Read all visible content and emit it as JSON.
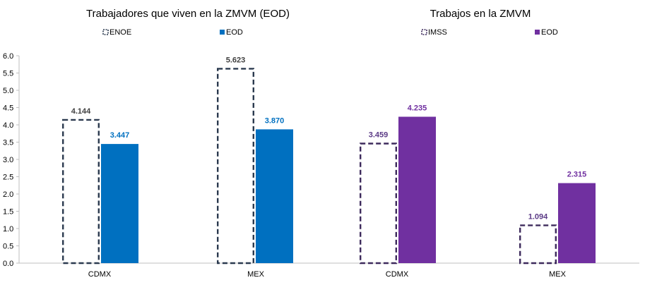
{
  "chart_data": {
    "type": "bar",
    "ylim": [
      0,
      6
    ],
    "yticks": [
      "0.0",
      "0.5",
      "1.0",
      "1.5",
      "2.0",
      "2.5",
      "3.0",
      "3.5",
      "4.0",
      "4.5",
      "5.0",
      "5.5",
      "6.0"
    ],
    "grid": false,
    "groups": [
      {
        "title": "Trabajadores que viven en la ZMVM (EOD)",
        "categories": [
          "CDMX",
          "MEX"
        ],
        "series": [
          {
            "name": "ENOE",
            "style": "dashed-outline",
            "color": "#2b3a4f",
            "values": [
              4.144,
              5.623
            ],
            "labels": [
              "4.144",
              "5.623"
            ],
            "label_color": "#404040"
          },
          {
            "name": "EOD",
            "style": "solid",
            "color": "#0070c0",
            "values": [
              3.447,
              3.87
            ],
            "labels": [
              "3.447",
              "3.870"
            ],
            "label_color": "#0070c0"
          }
        ]
      },
      {
        "title": "Trabajos en la ZMVM",
        "categories": [
          "CDMX",
          "MEX"
        ],
        "series": [
          {
            "name": "IMSS",
            "style": "dashed-outline",
            "color": "#3d2a5c",
            "values": [
              3.459,
              1.094
            ],
            "labels": [
              "3.459",
              "1.094"
            ],
            "label_color": "#5b3a86"
          },
          {
            "name": "EOD",
            "style": "solid",
            "color": "#7030a0",
            "values": [
              4.235,
              2.315
            ],
            "labels": [
              "4.235",
              "2.315"
            ],
            "label_color": "#7030a0"
          }
        ]
      }
    ]
  }
}
